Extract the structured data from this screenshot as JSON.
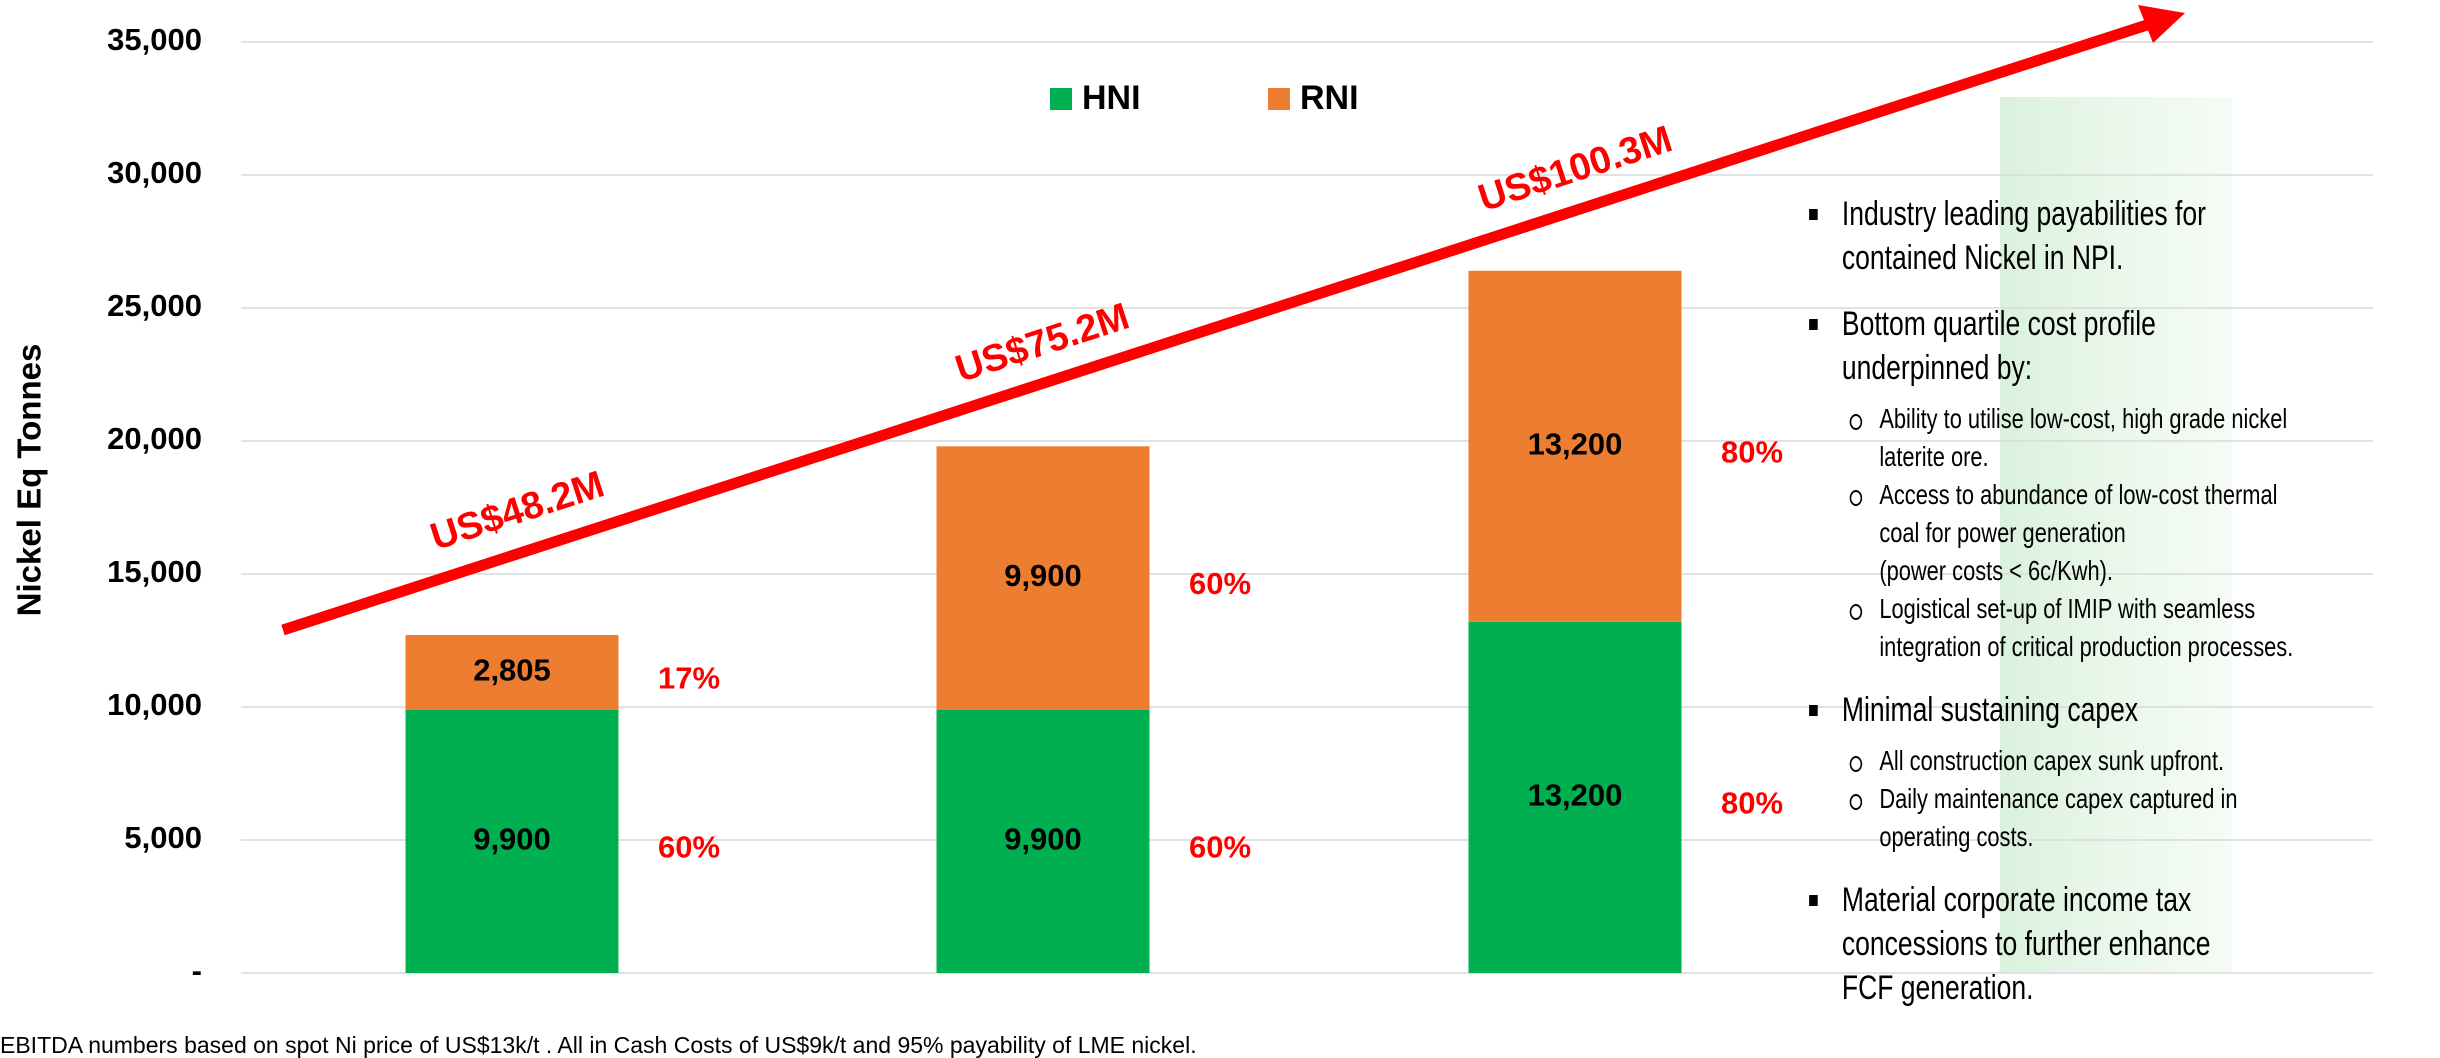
{
  "chart_data": {
    "type": "stacked_bar",
    "y_label": "Nickel Eq Tonnes",
    "categories": [
      null,
      null,
      null
    ],
    "series": [
      {
        "name": "HNI",
        "color": "#00b050",
        "values": [
          9900,
          9900,
          13200
        ],
        "value_labels": [
          "9,900",
          "9,900",
          "13,200"
        ],
        "share_labels": [
          "60%",
          "60%",
          "80%"
        ]
      },
      {
        "name": "RNI",
        "color": "#ed7d31",
        "values": [
          2805,
          9900,
          13200
        ],
        "value_labels": [
          "2,805",
          "9,900",
          "13,200"
        ],
        "share_labels": [
          "17%",
          "60%",
          "80%"
        ]
      }
    ],
    "trend_labels": [
      "US$48.2M",
      "US$75.2M",
      "US$100.3M"
    ],
    "trend_color": "#ff0000",
    "ylim": [
      0,
      35000
    ],
    "yticks": [
      {
        "value": 0,
        "label": "-"
      },
      {
        "value": 5000,
        "label": "5,000"
      },
      {
        "value": 10000,
        "label": "10,000"
      },
      {
        "value": 15000,
        "label": "15,000"
      },
      {
        "value": 20000,
        "label": "20,000"
      },
      {
        "value": 25000,
        "label": "25,000"
      },
      {
        "value": 30000,
        "label": "30,000"
      },
      {
        "value": 35000,
        "label": "35,000"
      }
    ],
    "grid": true,
    "legend": "top",
    "footnote": "EBITDA numbers based on spot Ni price of US$13k/t . All in Cash Costs of US$9k/t and 95% payability of LME nickel."
  },
  "bullets": [
    {
      "lines": [
        "Industry leading payabilities for",
        "contained Nickel in NPI."
      ],
      "sub": []
    },
    {
      "lines": [
        "Bottom quartile cost profile",
        "underpinned by:"
      ],
      "sub": [
        {
          "lines": [
            "Ability to utilise low-cost, high grade nickel",
            "laterite ore."
          ]
        },
        {
          "lines": [
            "Access to abundance of low-cost thermal",
            "coal for power generation",
            "(power costs < 6c/Kwh)."
          ]
        },
        {
          "lines": [
            "Logistical set-up of IMIP with seamless",
            "integration of critical production processes."
          ]
        }
      ]
    },
    {
      "lines": [
        "Minimal sustaining capex"
      ],
      "sub": [
        {
          "lines": [
            "All construction capex sunk upfront."
          ]
        },
        {
          "lines": [
            "Daily maintenance capex captured in",
            "operating costs."
          ]
        }
      ]
    },
    {
      "lines": [
        "Material corporate income tax",
        "concessions to further enhance",
        "FCF generation."
      ],
      "sub": []
    }
  ]
}
